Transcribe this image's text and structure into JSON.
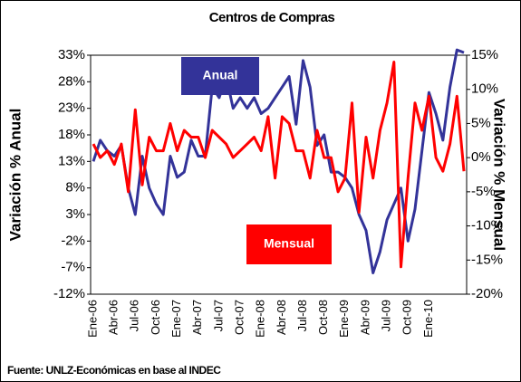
{
  "chart_data": {
    "type": "line",
    "title": "Centros de Compras",
    "ylabel": "Variación % Anual",
    "y2label": "Variación % Mensual",
    "source": "Fuente: UNLZ-Económicas en base al INDEC",
    "categories": [
      "Ene-06",
      null,
      null,
      "Abr-06",
      null,
      null,
      "Jul-06",
      null,
      null,
      "Oct-06",
      null,
      null,
      "Ene-07",
      null,
      null,
      "Abr-07",
      null,
      null,
      "Jul-07",
      null,
      null,
      "Oct-07",
      null,
      null,
      "Ene-08",
      null,
      null,
      "Abr-08",
      null,
      null,
      "Jul-08",
      null,
      null,
      "Oct-08",
      null,
      null,
      "Ene-09",
      null,
      null,
      "Abr-09",
      null,
      null,
      "Jul-09",
      null,
      null,
      "Oct-09",
      null,
      null,
      "Ene-10",
      null,
      null,
      null,
      null,
      null
    ],
    "series": [
      {
        "name": "Anual",
        "color": "#333399",
        "values": [
          13,
          17,
          15,
          14,
          16,
          8,
          3,
          14,
          8,
          5,
          3,
          14,
          10,
          11,
          17,
          14,
          14,
          27,
          25,
          29,
          23,
          25,
          23,
          25,
          22,
          23,
          25,
          27,
          29,
          20,
          32,
          27,
          16,
          18,
          11,
          11,
          10,
          8,
          3,
          0,
          -8,
          -4,
          2,
          5,
          8,
          -2,
          4,
          15,
          26,
          22,
          17,
          27,
          34,
          33.5
        ]
      },
      {
        "name": "Mensual",
        "color": "#ff0000",
        "axis": "y2",
        "values": [
          2,
          0,
          1,
          -1,
          2,
          -5,
          7,
          -4,
          3,
          1,
          1,
          5,
          1,
          4,
          3,
          3,
          0,
          4,
          3,
          2,
          0,
          1,
          2,
          3,
          1,
          6,
          -3,
          6,
          5,
          1,
          1,
          -3,
          4,
          0,
          0,
          -5,
          -3,
          8,
          -8,
          3,
          -3,
          4,
          8,
          14,
          -16,
          -3,
          8,
          4,
          9,
          0,
          -2,
          2,
          9,
          -2
        ]
      }
    ],
    "ylim": [
      -12,
      33
    ],
    "yticks": [
      {
        "value": -12,
        "label": "-12%"
      },
      {
        "value": -7,
        "label": "-7%"
      },
      {
        "value": -2,
        "label": "-2%"
      },
      {
        "value": 3,
        "label": "3%"
      },
      {
        "value": 8,
        "label": "8%"
      },
      {
        "value": 13,
        "label": "13%"
      },
      {
        "value": 18,
        "label": "18%"
      },
      {
        "value": 23,
        "label": "23%"
      },
      {
        "value": 28,
        "label": "28%"
      },
      {
        "value": 33,
        "label": "33%"
      }
    ],
    "y2lim": [
      -20,
      15
    ],
    "y2ticks": [
      {
        "value": -20,
        "label": "-20%"
      },
      {
        "value": -15,
        "label": "-15%"
      },
      {
        "value": -10,
        "label": "-10%"
      },
      {
        "value": -5,
        "label": "-5%"
      },
      {
        "value": 0,
        "label": "0%"
      },
      {
        "value": 5,
        "label": "5%"
      },
      {
        "value": 10,
        "label": "10%"
      },
      {
        "value": 15,
        "label": "15%"
      }
    ],
    "grid": false
  }
}
